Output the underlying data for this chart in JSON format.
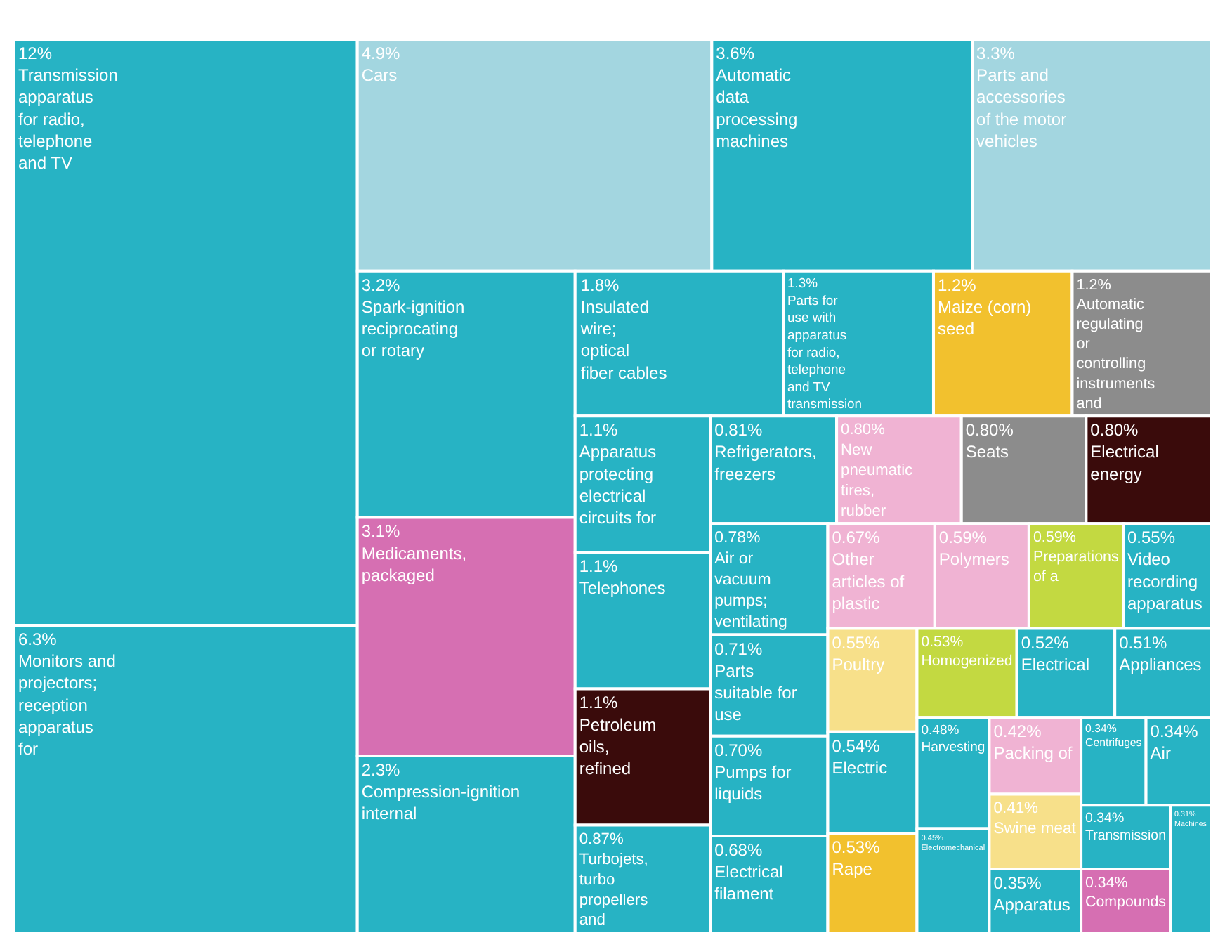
{
  "chart_data": {
    "type": "other",
    "categories": [
      "Transmission apparatus for radio, telephone and TV",
      "Monitors and projectors; reception apparatus for",
      "Automatic data processing machines",
      "Spark-ignition reciprocating or rotary",
      "Compression-ignition internal",
      "Insulated wire; optical fiber cables",
      "Parts for use with apparatus for radio, telephone and TV transmission",
      "Air or vacuum pumps; ventilating",
      "Parts suitable for use",
      "Pumps for liquids",
      "Electrical filament",
      "Apparatus protecting electrical circuits for",
      "Telephones",
      "Turbojets, turbo propellers and",
      "Refrigerators, freezers",
      "Video recording apparatus",
      "Electric",
      "Electrical",
      "Appliances",
      "Harvesting",
      "Electromechanical",
      "Apparatus",
      "Centrifuges",
      "Air",
      "Transmission",
      "Machines",
      "Cars",
      "Parts and accessories of the motor vehicles",
      "Medicaments, packaged",
      "Compounds",
      "New pneumatic tires, rubber",
      "Packing of",
      "Other articles of plastic",
      "Polymers",
      "Maize (corn) seed",
      "Rape",
      "Preparations of a",
      "Homogenized",
      "Poultry",
      "Swine meat",
      "Automatic regulating or controlling instruments and",
      "Seats",
      "Petroleum oils, refined",
      "Electrical energy"
    ],
    "values": [
      12,
      6.3,
      3.6,
      3.2,
      2.3,
      1.8,
      1.3,
      0.78,
      0.71,
      0.7,
      0.68,
      1.1,
      1.1,
      0.87,
      0.81,
      0.55,
      0.54,
      0.52,
      0.51,
      0.48,
      0.45,
      0.35,
      0.34,
      0.34,
      0.34,
      0.31,
      4.9,
      3.3,
      3.1,
      0.34,
      0.8,
      0.42,
      0.67,
      0.59,
      1.2,
      0.53,
      0.59,
      0.53,
      0.55,
      0.41,
      1.2,
      0.8,
      1.1,
      0.8
    ],
    "value_labels": [
      "12%",
      "6.3%",
      "3.6%",
      "3.2%",
      "2.3%",
      "1.8%",
      "1.3%",
      "0.78%",
      "0.71%",
      "0.70%",
      "0.68%",
      "1.1%",
      "1.1%",
      "0.87%",
      "0.81%",
      "0.55%",
      "0.54%",
      "0.52%",
      "0.51%",
      "0.48%",
      "0.45%",
      "0.35%",
      "0.34%",
      "0.34%",
      "0.34%",
      "0.31%",
      "4.9%",
      "3.3%",
      "3.1%",
      "0.34%",
      "0.80%",
      "0.42%",
      "0.67%",
      "0.59%",
      "1.2%",
      "0.53%",
      "0.59%",
      "0.53%",
      "0.55%",
      "0.41%",
      "1.2%",
      "0.80%",
      "1.1%",
      "0.80%"
    ],
    "colors": [
      "#27b3c4",
      "#27b3c4",
      "#27b3c4",
      "#27b3c4",
      "#27b3c4",
      "#27b3c4",
      "#27b3c4",
      "#27b3c4",
      "#27b3c4",
      "#27b3c4",
      "#27b3c4",
      "#27b3c4",
      "#27b3c4",
      "#27b3c4",
      "#27b3c4",
      "#27b3c4",
      "#27b3c4",
      "#27b3c4",
      "#27b3c4",
      "#27b3c4",
      "#27b3c4",
      "#27b3c4",
      "#27b3c4",
      "#27b3c4",
      "#27b3c4",
      "#27b3c4",
      "#a3d6e0",
      "#a3d6e0",
      "#d66fb2",
      "#d66fb2",
      "#f0b3d3",
      "#f0b3d3",
      "#f0b3d3",
      "#f0b3d3",
      "#f2c12e",
      "#f2c12e",
      "#c3d941",
      "#c3d941",
      "#f7e08a",
      "#f7e08a",
      "#8c8c8c",
      "#8c8c8c",
      "#3a0b0b",
      "#3a0b0b"
    ]
  }
}
